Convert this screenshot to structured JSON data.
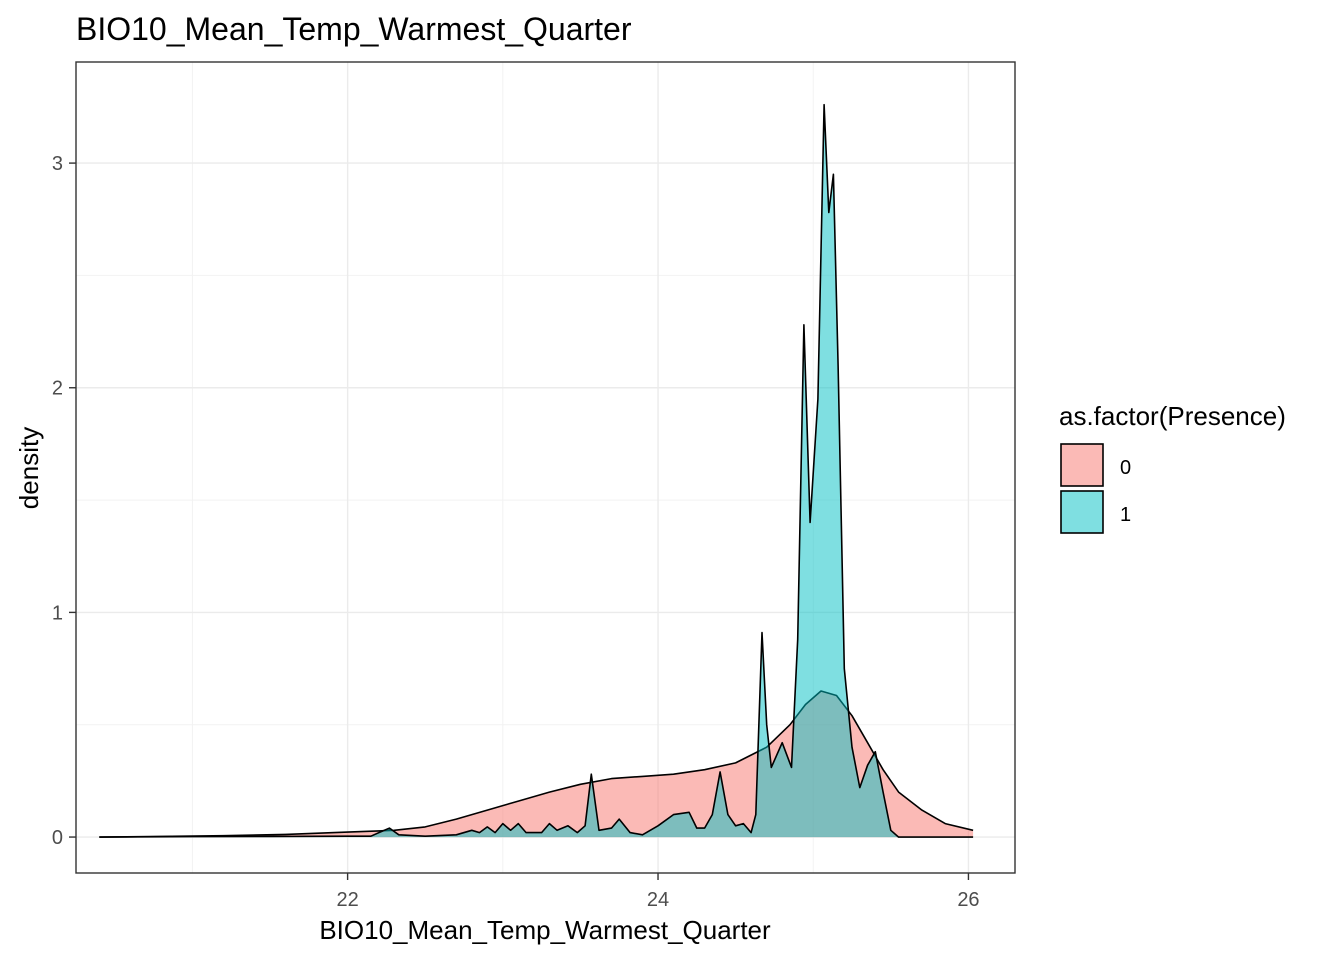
{
  "chart_data": {
    "type": "area",
    "title": "BIO10_Mean_Temp_Warmest_Quarter",
    "xlabel": "BIO10_Mean_Temp_Warmest_Quarter",
    "ylabel": "density",
    "xlim": [
      20.25,
      26.3
    ],
    "ylim": [
      -0.16,
      3.45
    ],
    "x_ticks": [
      22,
      24,
      26
    ],
    "y_ticks": [
      0,
      1,
      2,
      3
    ],
    "grid": true,
    "legend_position": "right",
    "legend": {
      "title": "as.factor(Presence)",
      "entries": [
        "0",
        "1"
      ]
    },
    "series": [
      {
        "name": "0",
        "color": "#F8766D",
        "points": [
          [
            20.4,
            0.0
          ],
          [
            20.8,
            0.003
          ],
          [
            21.2,
            0.006
          ],
          [
            21.6,
            0.012
          ],
          [
            22.0,
            0.022
          ],
          [
            22.3,
            0.03
          ],
          [
            22.5,
            0.045
          ],
          [
            22.7,
            0.08
          ],
          [
            22.9,
            0.12
          ],
          [
            23.1,
            0.16
          ],
          [
            23.3,
            0.2
          ],
          [
            23.5,
            0.235
          ],
          [
            23.7,
            0.26
          ],
          [
            23.9,
            0.27
          ],
          [
            24.1,
            0.28
          ],
          [
            24.3,
            0.3
          ],
          [
            24.5,
            0.33
          ],
          [
            24.7,
            0.4
          ],
          [
            24.85,
            0.5
          ],
          [
            24.95,
            0.59
          ],
          [
            25.05,
            0.65
          ],
          [
            25.15,
            0.63
          ],
          [
            25.25,
            0.54
          ],
          [
            25.35,
            0.42
          ],
          [
            25.45,
            0.3
          ],
          [
            25.55,
            0.2
          ],
          [
            25.7,
            0.12
          ],
          [
            25.85,
            0.06
          ],
          [
            26.03,
            0.03
          ]
        ]
      },
      {
        "name": "1",
        "color": "#00BFC4",
        "points": [
          [
            20.4,
            0.0
          ],
          [
            21.0,
            0.002
          ],
          [
            21.5,
            0.003
          ],
          [
            22.0,
            0.004
          ],
          [
            22.15,
            0.004
          ],
          [
            22.22,
            0.025
          ],
          [
            22.27,
            0.04
          ],
          [
            22.33,
            0.01
          ],
          [
            22.5,
            0.004
          ],
          [
            22.7,
            0.01
          ],
          [
            22.8,
            0.03
          ],
          [
            22.85,
            0.02
          ],
          [
            22.9,
            0.045
          ],
          [
            22.95,
            0.02
          ],
          [
            23.0,
            0.06
          ],
          [
            23.05,
            0.03
          ],
          [
            23.1,
            0.06
          ],
          [
            23.15,
            0.02
          ],
          [
            23.25,
            0.02
          ],
          [
            23.3,
            0.06
          ],
          [
            23.35,
            0.03
          ],
          [
            23.42,
            0.05
          ],
          [
            23.48,
            0.02
          ],
          [
            23.53,
            0.05
          ],
          [
            23.57,
            0.28
          ],
          [
            23.62,
            0.03
          ],
          [
            23.7,
            0.04
          ],
          [
            23.75,
            0.08
          ],
          [
            23.82,
            0.02
          ],
          [
            23.9,
            0.01
          ],
          [
            24.0,
            0.05
          ],
          [
            24.1,
            0.1
          ],
          [
            24.2,
            0.11
          ],
          [
            24.25,
            0.04
          ],
          [
            24.3,
            0.04
          ],
          [
            24.35,
            0.1
          ],
          [
            24.4,
            0.29
          ],
          [
            24.45,
            0.1
          ],
          [
            24.5,
            0.05
          ],
          [
            24.55,
            0.06
          ],
          [
            24.6,
            0.02
          ],
          [
            24.63,
            0.1
          ],
          [
            24.67,
            0.91
          ],
          [
            24.7,
            0.5
          ],
          [
            24.73,
            0.31
          ],
          [
            24.8,
            0.42
          ],
          [
            24.86,
            0.31
          ],
          [
            24.9,
            0.88
          ],
          [
            24.94,
            2.28
          ],
          [
            24.98,
            1.4
          ],
          [
            25.03,
            1.95
          ],
          [
            25.07,
            3.26
          ],
          [
            25.1,
            2.78
          ],
          [
            25.13,
            2.95
          ],
          [
            25.16,
            2.1
          ],
          [
            25.2,
            0.75
          ],
          [
            25.25,
            0.4
          ],
          [
            25.3,
            0.22
          ],
          [
            25.35,
            0.32
          ],
          [
            25.4,
            0.38
          ],
          [
            25.45,
            0.2
          ],
          [
            25.5,
            0.03
          ],
          [
            25.55,
            0.0
          ],
          [
            26.03,
            0.0
          ]
        ]
      }
    ]
  }
}
